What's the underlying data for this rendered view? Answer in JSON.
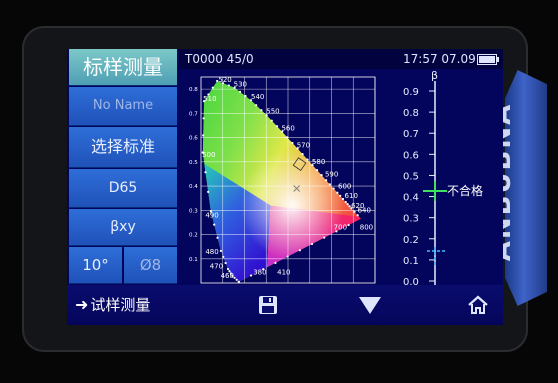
{
  "status": {
    "counter": "T0000 45/0",
    "time": "17:57  07.09"
  },
  "side_menu": {
    "title": "标样测量",
    "name": "No Name",
    "select_standard": "选择标准",
    "illuminant": "D65",
    "color_space": "βxy",
    "observer": "10°",
    "aperture": "Ø8"
  },
  "scale": {
    "label_top": "β",
    "ticks": [
      "0.9",
      "0.8",
      "0.7",
      "0.6",
      "0.5",
      "0.4",
      "0.3",
      "0.2",
      "0.1",
      "0.0"
    ],
    "result": "不合格"
  },
  "chart_data": {
    "type": "scatter",
    "title": "",
    "xlabel": "",
    "ylabel": "",
    "x_ticks": [
      "0.1",
      "0.2",
      "0.3",
      "0.4",
      "0.5",
      "0.6",
      "0.7",
      "0.8"
    ],
    "y_ticks": [
      "0.8",
      "0.7",
      "0.6",
      "0.5",
      "0.4",
      "0.3",
      "0.2",
      "0.1"
    ],
    "xlim": [
      0,
      0.8
    ],
    "ylim": [
      0,
      0.85
    ],
    "wavelength_labels": [
      {
        "text": "520",
        "x": 0.08,
        "y": 0.83
      },
      {
        "text": "510",
        "x": 0.01,
        "y": 0.75
      },
      {
        "text": "530",
        "x": 0.15,
        "y": 0.81
      },
      {
        "text": "540",
        "x": 0.23,
        "y": 0.76
      },
      {
        "text": "550",
        "x": 0.3,
        "y": 0.7
      },
      {
        "text": "560",
        "x": 0.37,
        "y": 0.63
      },
      {
        "text": "500",
        "x": 0.005,
        "y": 0.52
      },
      {
        "text": "570",
        "x": 0.44,
        "y": 0.56
      },
      {
        "text": "580",
        "x": 0.51,
        "y": 0.49
      },
      {
        "text": "590",
        "x": 0.57,
        "y": 0.44
      },
      {
        "text": "600",
        "x": 0.63,
        "y": 0.39
      },
      {
        "text": "610",
        "x": 0.66,
        "y": 0.35
      },
      {
        "text": "620",
        "x": 0.69,
        "y": 0.31
      },
      {
        "text": "640",
        "x": 0.72,
        "y": 0.29
      },
      {
        "text": "700",
        "x": 0.61,
        "y": 0.22
      },
      {
        "text": "800",
        "x": 0.73,
        "y": 0.22
      },
      {
        "text": "490",
        "x": 0.02,
        "y": 0.27
      },
      {
        "text": "480",
        "x": 0.02,
        "y": 0.12
      },
      {
        "text": "470",
        "x": 0.04,
        "y": 0.06
      },
      {
        "text": "460",
        "x": 0.09,
        "y": 0.02
      },
      {
        "text": "380",
        "x": 0.24,
        "y": 0.035
      },
      {
        "text": "410",
        "x": 0.35,
        "y": 0.035
      }
    ],
    "sample_point": {
      "x": 0.44,
      "y": 0.39
    },
    "reference_box": {
      "x": 0.45,
      "y": 0.49
    },
    "grid": true,
    "series_colors": {
      "locus_dots": "#ffffff",
      "grid": "#ffffff"
    }
  },
  "toolbar": {
    "measure_label": "试样测量",
    "arrow_icon": "arrow-right-icon",
    "save_icon": "floppy-disk-icon",
    "down_icon": "triangle-down-icon",
    "home_icon": "home-icon"
  },
  "device": {
    "brand": "ANBUBNA"
  }
}
